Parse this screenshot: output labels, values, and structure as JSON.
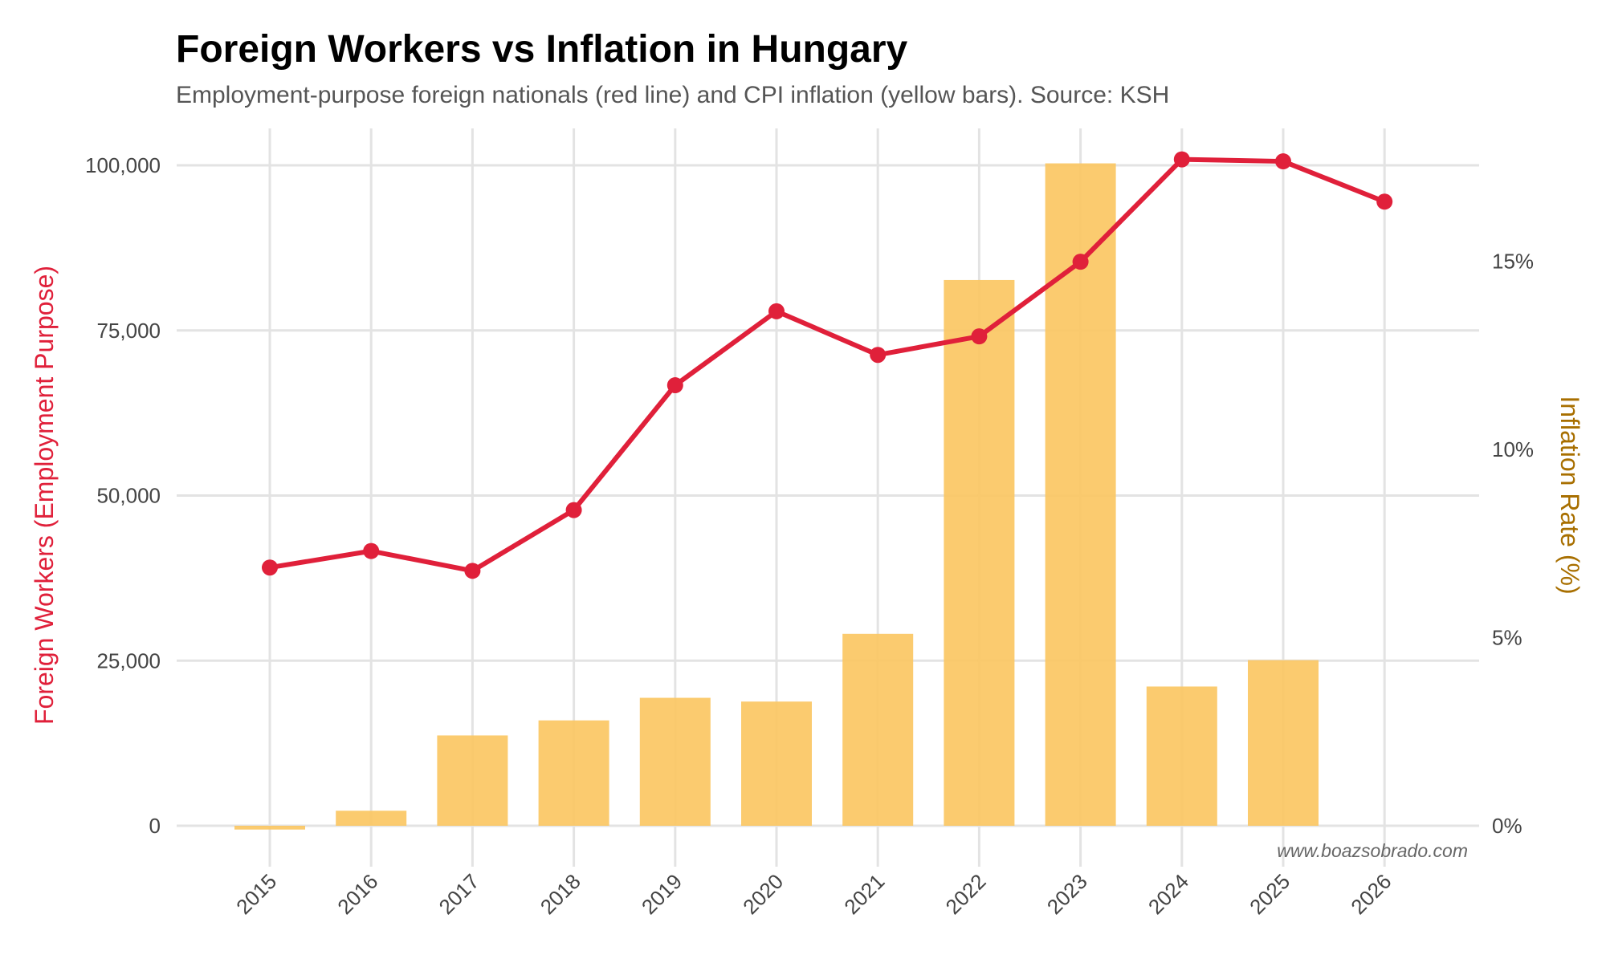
{
  "title": "Foreign Workers vs Inflation in Hungary",
  "subtitle": "Employment-purpose foreign nationals (red line) and CPI inflation (yellow bars). Source: KSH",
  "watermark": "www.boazsobrado.com",
  "colors": {
    "line": "#e0203a",
    "bars": "#fbc55f",
    "right_axis_label": "#a86f00",
    "grid": "#e3e3e3"
  },
  "chart_data": {
    "type": "bar+line",
    "title": "Foreign Workers vs Inflation in Hungary",
    "x": [
      "2015",
      "2016",
      "2017",
      "2018",
      "2019",
      "2020",
      "2021",
      "2022",
      "2023",
      "2024",
      "2025",
      "2026"
    ],
    "ylabel_left": "Foreign Workers (Employment Purpose)",
    "ylabel_right": "Inflation Rate (%)",
    "ylim_left": [
      0,
      100000
    ],
    "ylim_right": [
      0,
      17.5
    ],
    "yticks_left": [
      "0",
      "25,000",
      "50,000",
      "75,000",
      "100,000"
    ],
    "yticks_left_values": [
      0,
      25000,
      50000,
      75000,
      100000
    ],
    "yticks_right": [
      "0%",
      "5%",
      "10%",
      "15%"
    ],
    "yticks_right_values": [
      0,
      5,
      10,
      15
    ],
    "grid": true,
    "series": [
      {
        "name": "Foreign workers",
        "type": "line",
        "axis": "left",
        "values": [
          39100,
          41600,
          38600,
          47800,
          66700,
          77900,
          71300,
          74100,
          85400,
          100900,
          100600,
          94500
        ]
      },
      {
        "name": "CPI inflation",
        "type": "bar",
        "axis": "right",
        "values": [
          -0.1,
          0.4,
          2.4,
          2.8,
          3.4,
          3.3,
          5.1,
          14.5,
          17.6,
          3.7,
          4.4,
          null
        ]
      }
    ]
  }
}
